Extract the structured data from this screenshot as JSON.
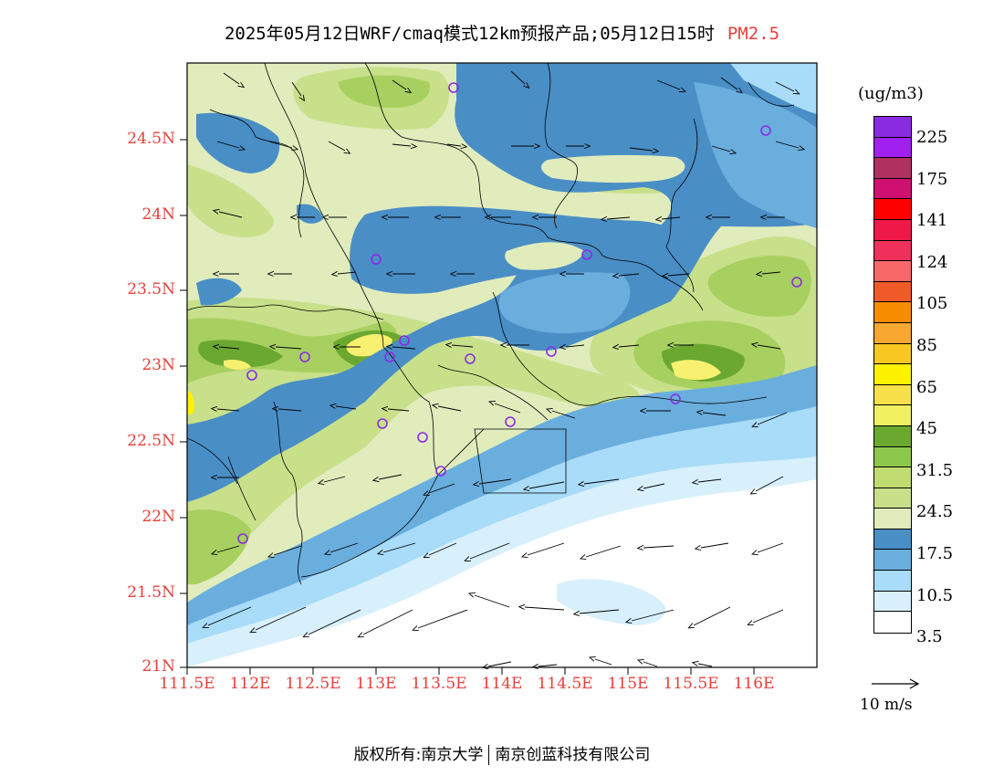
{
  "title": {
    "text": "2025年05月12日WRF/cmaq模式12km预报产品;05月12日15时",
    "variable": "PM2.5"
  },
  "axes": {
    "lat_labels": [
      "24.5N",
      "24N",
      "23.5N",
      "23N",
      "22.5N",
      "22N",
      "21.5N",
      "21N"
    ],
    "lon_labels": [
      "111.5E",
      "112E",
      "112.5E",
      "113E",
      "113.5E",
      "114E",
      "114.5E",
      "115E",
      "115.5E",
      "116E"
    ]
  },
  "legend": {
    "unit": "(ug/m3)",
    "colors": [
      "#8a2be2",
      "#a020f0",
      "#b03060",
      "#d01070",
      "#ff0000",
      "#f01848",
      "#f0305a",
      "#f86868",
      "#f05a28",
      "#f88c00",
      "#f8a830",
      "#f8c820",
      "#fff200",
      "#f8e048",
      "#f0f060",
      "#6aa830",
      "#8cc84a",
      "#c0dc70",
      "#c8e08a",
      "#e0ecbc",
      "#4a8ec6",
      "#6aaede",
      "#a8dcf8",
      "#d8f0fc",
      "#ffffff"
    ],
    "labels": [
      "225",
      "175",
      "141",
      "124",
      "105",
      "85",
      "65",
      "45",
      "31.5",
      "24.5",
      "17.5",
      "10.5",
      "3.5"
    ],
    "wind_reference": "10 m/s"
  },
  "footer": {
    "copyright": "版权所有:南京大学",
    "company": "南京创蓝科技有限公司"
  },
  "map_colors": {
    "white": "#ffffff",
    "vlightblue": "#d8f0fc",
    "lightblue": "#a8dcf8",
    "midblue": "#6aaede",
    "blue": "#4a8ec6",
    "palegreen": "#e0ecbc",
    "lightgreen": "#c8e08a",
    "green": "#a8d060",
    "darkgreen": "#6aa830",
    "yellow": "#f8f070",
    "brightyellow": "#fff200"
  }
}
